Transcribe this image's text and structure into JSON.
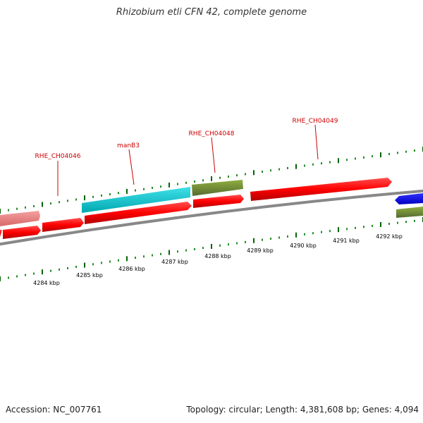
{
  "title": "Rhizobium etli CFN 42, complete genome",
  "accession": "Accession: NC_007761",
  "summary": "Topology: circular; Length: 4,381,608 bp; Genes: 4,094",
  "colors": {
    "backbone": "#888888",
    "forward_cds": "#ff0000",
    "reverse_cds": "#ff0000",
    "faded_cds": "#f08080",
    "cyan_gene": "#00c8d2",
    "olive_gene": "#6b8e23",
    "blue_gene": "#0000ff",
    "label": "#cc0000",
    "tick_minor": "#228b22"
  },
  "gene_labels": [
    {
      "id": "gene-label-rhe-ch04046",
      "text": "RHE_CH04046"
    },
    {
      "id": "gene-label-manb3",
      "text": "manB3"
    },
    {
      "id": "gene-label-rhe-ch04048",
      "text": "RHE_CH04048"
    },
    {
      "id": "gene-label-rhe-ch04049",
      "text": "RHE_CH04049"
    }
  ],
  "scale_labels": [
    "4284 kbp",
    "4285 kbp",
    "4286 kbp",
    "4287 kbp",
    "4288 kbp",
    "4289 kbp",
    "4290 kbp",
    "4291 kbp",
    "4292 kbp"
  ]
}
